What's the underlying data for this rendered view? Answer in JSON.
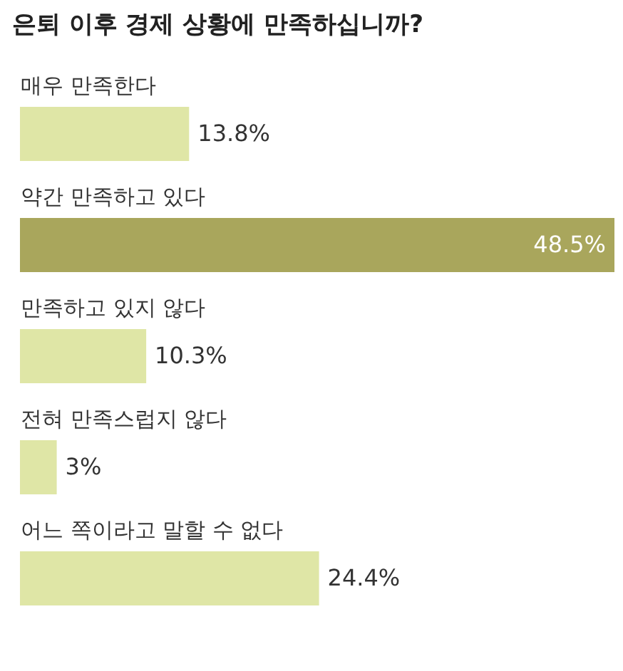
{
  "chart_data": {
    "type": "bar",
    "orientation": "horizontal",
    "title": "은퇴 이후 경제 상황에 만족하십니까?",
    "categories": [
      "매우 만족한다",
      "약간 만족하고 있다",
      "만족하고 있지 않다",
      "전혀 만족스럽지 않다",
      "어느 쪽이라고 말할 수 없다"
    ],
    "values": [
      13.8,
      48.5,
      10.3,
      3,
      24.4
    ],
    "colors": [
      "#dfe6a6",
      "#a9a65c",
      "#dfe6a6",
      "#dfe6a6",
      "#dfe6a6"
    ],
    "value_labels": [
      "13.8%",
      "48.5%",
      "10.3%",
      "3%",
      "24.4%"
    ]
  }
}
